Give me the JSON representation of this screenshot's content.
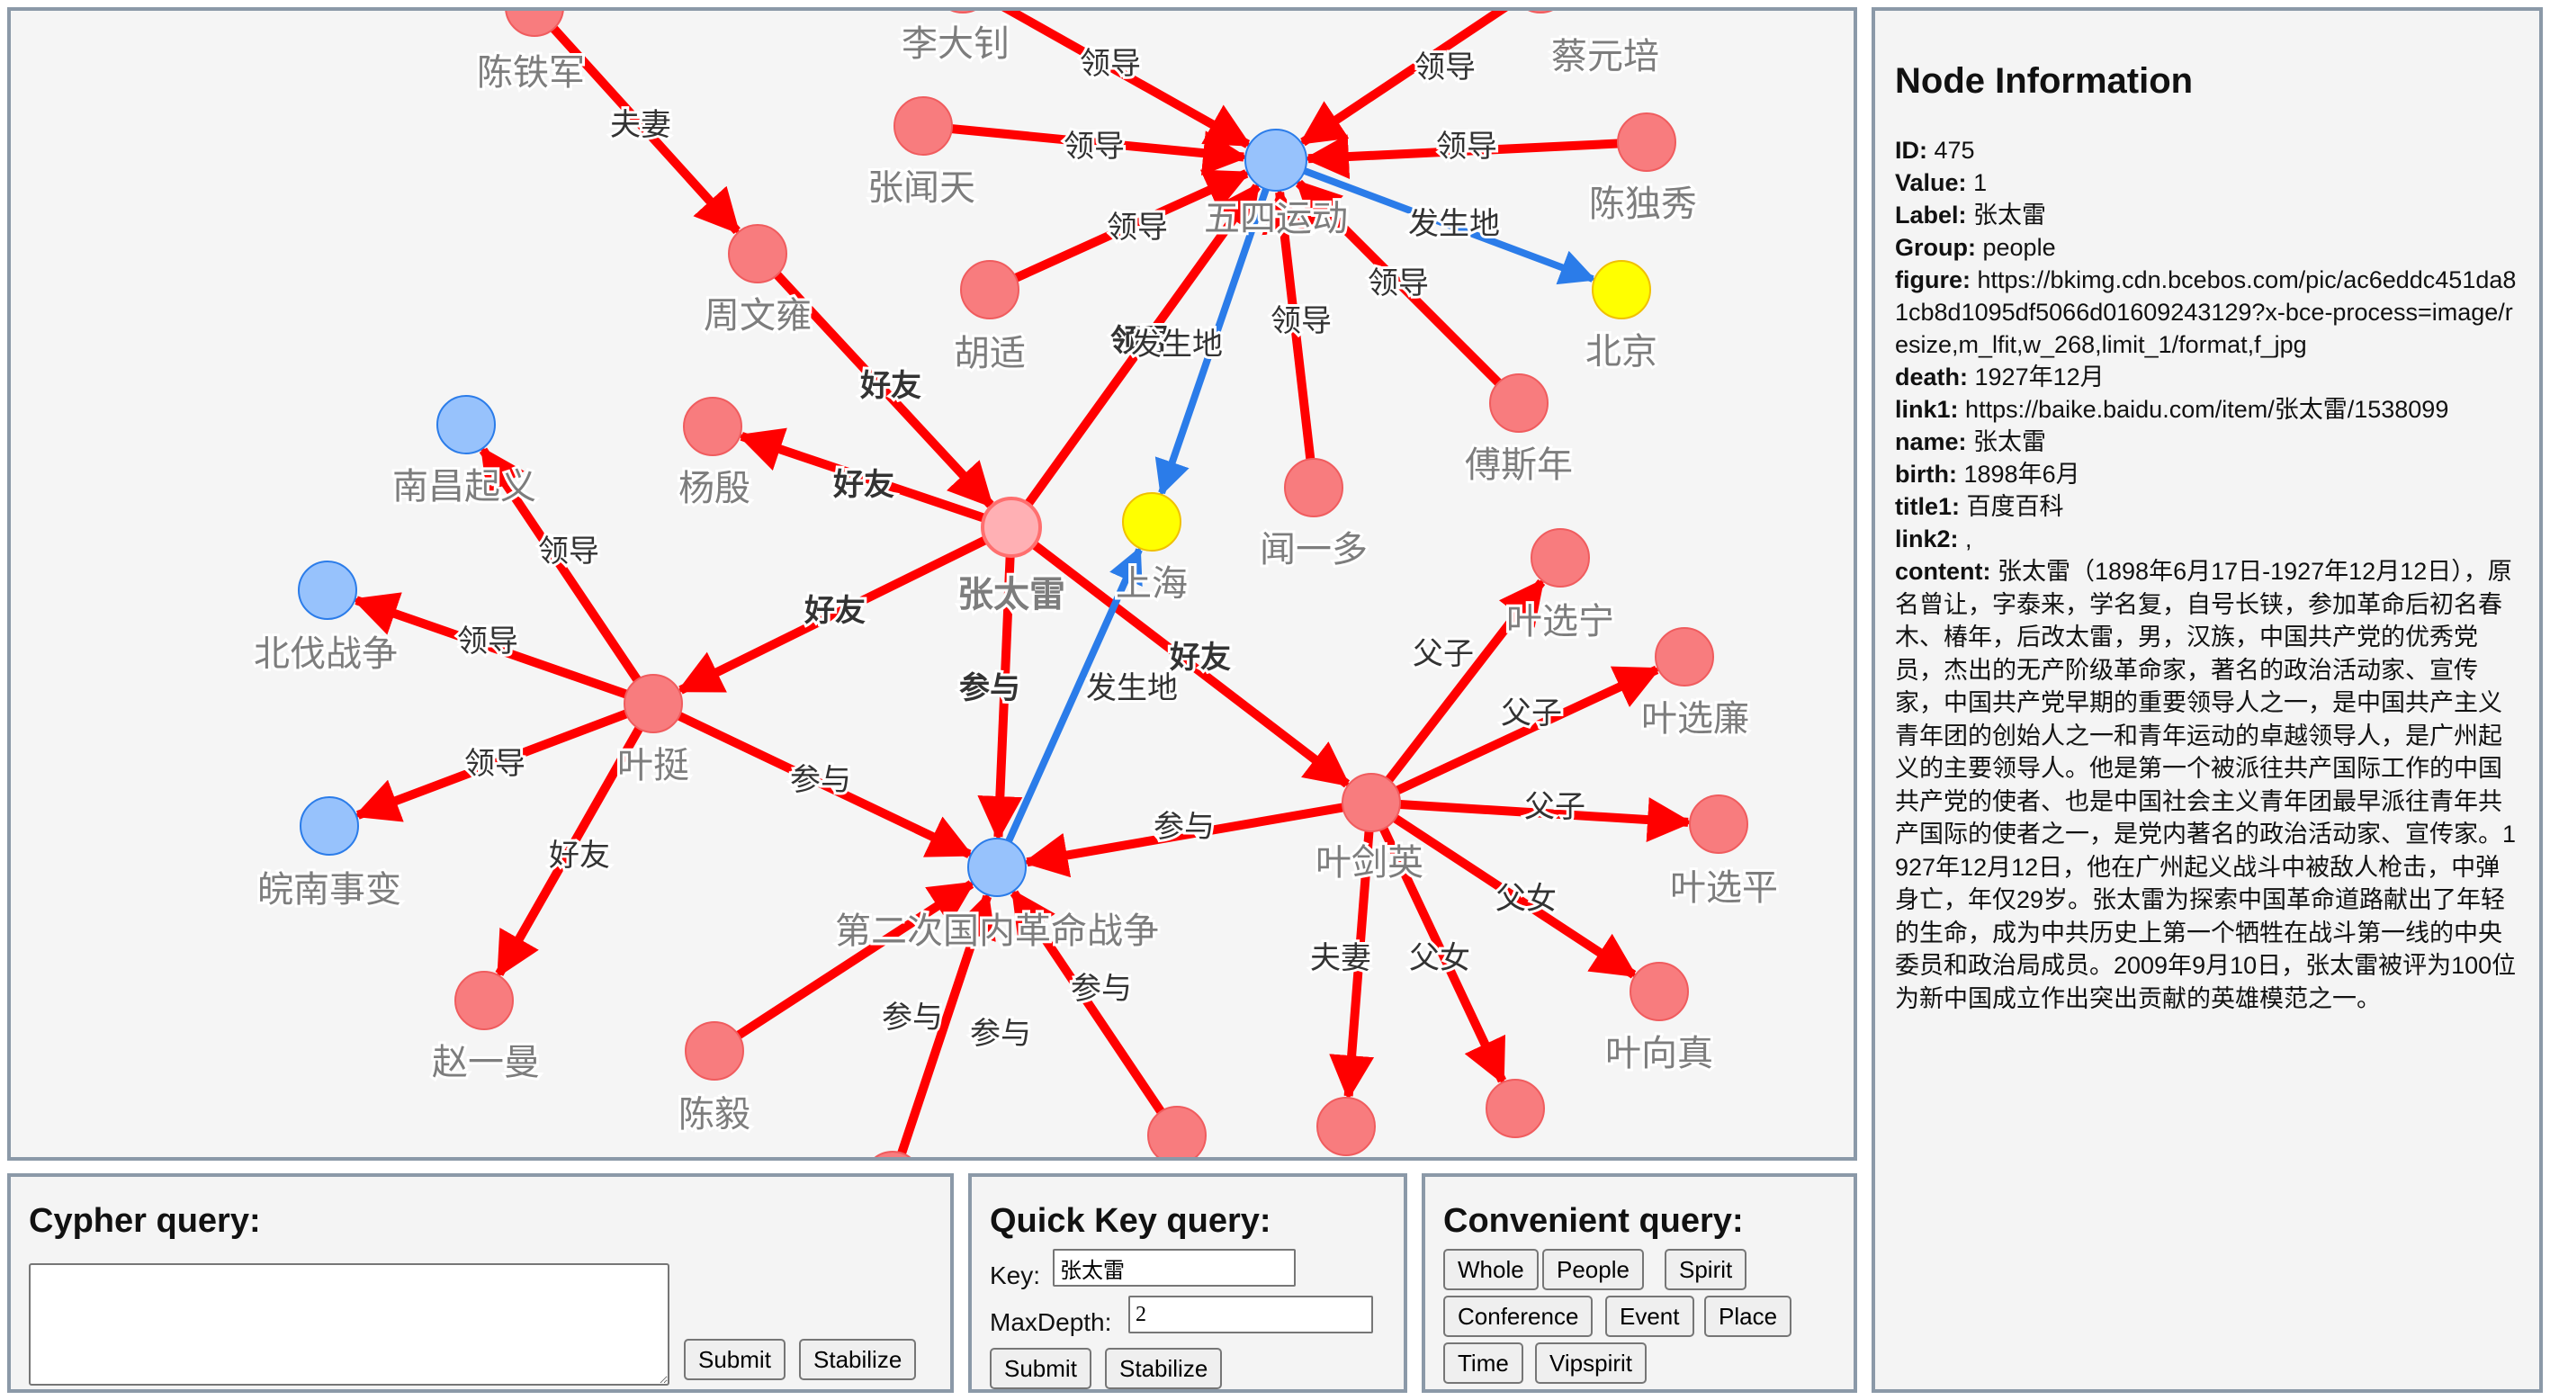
{
  "graph": {
    "nodes": [
      {
        "id": "n_wusi",
        "label": "五四运动",
        "color": "#97c2fc",
        "stroke": "#2b7ce9"
      },
      {
        "id": "n_ztl",
        "label": "张太雷",
        "color": "#ffb0b4",
        "stroke": "#ff6f6f",
        "bold": true
      },
      {
        "id": "n_yeting",
        "label": "叶挺",
        "color": "#f87c7e",
        "stroke": "#f05c5e"
      },
      {
        "id": "n_yjy",
        "label": "叶剑英",
        "color": "#f87c7e",
        "stroke": "#f05c5e"
      },
      {
        "id": "n_dec",
        "label": "第二次国内革命战争",
        "color": "#97c2fc",
        "stroke": "#2b7ce9"
      },
      {
        "id": "n_sh",
        "label": "上海",
        "color": "#ffff00",
        "stroke": "#f0c000"
      },
      {
        "id": "n_bj",
        "label": "北京",
        "color": "#ffff00",
        "stroke": "#f0c000"
      },
      {
        "id": "n_ldz",
        "label": "李大钊",
        "color": "#f87c7e",
        "stroke": "#f05c5e"
      },
      {
        "id": "n_cyp",
        "label": "蔡元培",
        "color": "#f87c7e",
        "stroke": "#f05c5e"
      },
      {
        "id": "n_zwt",
        "label": "张闻天",
        "color": "#f87c7e",
        "stroke": "#f05c5e"
      },
      {
        "id": "n_cdx",
        "label": "陈独秀",
        "color": "#f87c7e",
        "stroke": "#f05c5e"
      },
      {
        "id": "n_hs",
        "label": "胡适",
        "color": "#f87c7e",
        "stroke": "#f05c5e"
      },
      {
        "id": "n_fsn",
        "label": "傅斯年",
        "color": "#f87c7e",
        "stroke": "#f05c5e"
      },
      {
        "id": "n_wyd",
        "label": "闻一多",
        "color": "#f87c7e",
        "stroke": "#f05c5e"
      },
      {
        "id": "n_ctj",
        "label": "陈铁军",
        "color": "#f87c7e",
        "stroke": "#f05c5e"
      },
      {
        "id": "n_zwy",
        "label": "周文雍",
        "color": "#f87c7e",
        "stroke": "#f05c5e"
      },
      {
        "id": "n_yy",
        "label": "杨殷",
        "color": "#f87c7e",
        "stroke": "#f05c5e"
      },
      {
        "id": "n_ncqy",
        "label": "南昌起义",
        "color": "#97c2fc",
        "stroke": "#2b7ce9"
      },
      {
        "id": "n_bfzz",
        "label": "北伐战争",
        "color": "#97c2fc",
        "stroke": "#2b7ce9"
      },
      {
        "id": "n_wnsb",
        "label": "皖南事变",
        "color": "#97c2fc",
        "stroke": "#2b7ce9"
      },
      {
        "id": "n_zym",
        "label": "赵一曼",
        "color": "#f87c7e",
        "stroke": "#f05c5e"
      },
      {
        "id": "n_cy",
        "label": "陈毅",
        "color": "#f87c7e",
        "stroke": "#f05c5e"
      },
      {
        "id": "n_yxn",
        "label": "叶选宁",
        "color": "#f87c7e",
        "stroke": "#f05c5e"
      },
      {
        "id": "n_yxl",
        "label": "叶选廉",
        "color": "#f87c7e",
        "stroke": "#f05c5e"
      },
      {
        "id": "n_yxp",
        "label": "叶选平",
        "color": "#f87c7e",
        "stroke": "#f05c5e"
      },
      {
        "id": "n_yxz",
        "label": "叶向真",
        "color": "#f87c7e",
        "stroke": "#f05c5e"
      },
      {
        "id": "n_b1",
        "label": "",
        "color": "#f87c7e",
        "stroke": "#f05c5e"
      },
      {
        "id": "n_b2",
        "label": "",
        "color": "#f87c7e",
        "stroke": "#f05c5e"
      },
      {
        "id": "n_b3",
        "label": "",
        "color": "#f87c7e",
        "stroke": "#f05c5e"
      },
      {
        "id": "n_off1",
        "label": "",
        "color": "#f87c7e",
        "stroke": "#f05c5e"
      }
    ],
    "edges": [
      {
        "from": "n_ldz",
        "to": "n_wusi",
        "label": "领导",
        "color": "#ff0000"
      },
      {
        "from": "n_cyp",
        "to": "n_wusi",
        "label": "领导",
        "color": "#ff0000"
      },
      {
        "from": "n_zwt",
        "to": "n_wusi",
        "label": "领导",
        "color": "#ff0000"
      },
      {
        "from": "n_cdx",
        "to": "n_wusi",
        "label": "领导",
        "color": "#ff0000"
      },
      {
        "from": "n_hs",
        "to": "n_wusi",
        "label": "领导",
        "color": "#ff0000"
      },
      {
        "from": "n_fsn",
        "to": "n_wusi",
        "label": "领导",
        "color": "#ff0000"
      },
      {
        "from": "n_wyd",
        "to": "n_wusi",
        "label": "领导",
        "color": "#ff0000"
      },
      {
        "from": "n_ztl",
        "to": "n_wusi",
        "label": "领导",
        "color": "#ff0000",
        "boldLabel": true
      },
      {
        "from": "n_wusi",
        "to": "n_bj",
        "label": "发生地",
        "color": "#2b7ce9"
      },
      {
        "from": "n_wusi",
        "to": "n_sh",
        "label": "发生地",
        "color": "#2b7ce9"
      },
      {
        "from": "n_ctj",
        "to": "n_zwy",
        "label": "夫妻",
        "color": "#ff0000"
      },
      {
        "from": "n_zwy",
        "to": "n_ztl",
        "label": "好友",
        "color": "#ff0000",
        "boldLabel": true
      },
      {
        "from": "n_ztl",
        "to": "n_yy",
        "label": "好友",
        "color": "#ff0000",
        "boldLabel": true
      },
      {
        "from": "n_ztl",
        "to": "n_yeting",
        "label": "好友",
        "color": "#ff0000",
        "boldLabel": true
      },
      {
        "from": "n_ztl",
        "to": "n_yjy",
        "label": "好友",
        "color": "#ff0000",
        "boldLabel": true
      },
      {
        "from": "n_ztl",
        "to": "n_dec",
        "label": "参与",
        "color": "#ff0000",
        "boldLabel": true
      },
      {
        "from": "n_dec",
        "to": "n_sh",
        "label": "发生地",
        "color": "#2b7ce9"
      },
      {
        "from": "n_yeting",
        "to": "n_ncqy",
        "label": "领导",
        "color": "#ff0000"
      },
      {
        "from": "n_yeting",
        "to": "n_bfzz",
        "label": "领导",
        "color": "#ff0000"
      },
      {
        "from": "n_yeting",
        "to": "n_wnsb",
        "label": "领导",
        "color": "#ff0000"
      },
      {
        "from": "n_yeting",
        "to": "n_zym",
        "label": "好友",
        "color": "#ff0000"
      },
      {
        "from": "n_yeting",
        "to": "n_dec",
        "label": "参与",
        "color": "#ff0000"
      },
      {
        "from": "n_yjy",
        "to": "n_dec",
        "label": "参与",
        "color": "#ff0000"
      },
      {
        "from": "n_yjy",
        "to": "n_yxn",
        "label": "父子",
        "color": "#ff0000"
      },
      {
        "from": "n_yjy",
        "to": "n_yxl",
        "label": "父子",
        "color": "#ff0000"
      },
      {
        "from": "n_yjy",
        "to": "n_yxp",
        "label": "父子",
        "color": "#ff0000"
      },
      {
        "from": "n_yjy",
        "to": "n_yxz",
        "label": "父女",
        "color": "#ff0000"
      },
      {
        "from": "n_yjy",
        "to": "n_b3",
        "label": "父女",
        "color": "#ff0000"
      },
      {
        "from": "n_yjy",
        "to": "n_b2",
        "label": "夫妻",
        "color": "#ff0000"
      },
      {
        "from": "n_cy",
        "to": "n_dec",
        "label": "参与",
        "color": "#ff0000"
      },
      {
        "from": "n_b1",
        "to": "n_dec",
        "label": "参与",
        "color": "#ff0000"
      },
      {
        "from": "n_off1",
        "to": "n_dec",
        "label": "参与",
        "color": "#ff0000"
      }
    ]
  },
  "cypher": {
    "title": "Cypher query:",
    "textarea_value": "",
    "submit": "Submit",
    "stabilize": "Stabilize"
  },
  "quick": {
    "title": "Quick Key query:",
    "key_label": "Key:",
    "key_value": "张太雷",
    "depth_label": "MaxDepth:",
    "depth_value": "2",
    "submit": "Submit",
    "stabilize": "Stabilize"
  },
  "convenient": {
    "title": "Convenient query:",
    "buttons": [
      "Whole",
      "People",
      "Spirit",
      "Conference",
      "Event",
      "Place",
      "Time",
      "Vipspirit"
    ]
  },
  "info": {
    "title": "Node Information",
    "fields": [
      {
        "key": "ID:",
        "value": "475"
      },
      {
        "key": "Value:",
        "value": "1"
      },
      {
        "key": "Label:",
        "value": "张太雷"
      },
      {
        "key": "Group:",
        "value": "people"
      },
      {
        "key": "figure:",
        "value": "https://bkimg.cdn.bcebos.com/pic/ac6eddc451da81cb8d1095df5066d01609243129?x-bce-process=image/resize,m_lfit,w_268,limit_1/format,f_jpg"
      },
      {
        "key": "death:",
        "value": "1927年12月"
      },
      {
        "key": "link1:",
        "value": "https://baike.baidu.com/item/张太雷/1538099"
      },
      {
        "key": "name:",
        "value": "张太雷"
      },
      {
        "key": "birth:",
        "value": "1898年6月"
      },
      {
        "key": "title1:",
        "value": "百度百科"
      },
      {
        "key": "link2:",
        "value": ","
      }
    ],
    "content_key": "content:",
    "content_value": "张太雷（1898年6月17日-1927年12月12日），原名曾让，字泰来，学名复，自号长铗，参加革命后初名春木、椿年，后改太雷，男，汉族，中国共产党的优秀党员，杰出的无产阶级革命家，著名的政治活动家、宣传家，中国共产党早期的重要领导人之一，是中国共产主义青年团的创始人之一和青年运动的卓越领导人，是广州起义的主要领导人。他是第一个被派往共产国际工作的中国共产党的使者、也是中国社会主义青年团最早派往青年共产国际的使者之一，是党内著名的政治活动家、宣传家。1927年12月12日，他在广州起义战斗中被敌人枪击，中弹身亡，年仅29岁。张太雷为探索中国革命道路献出了年轻的生命，成为中共历史上第一个牺牲在战斗第一线的中央委员和政治局成员。2009年9月10日，张太雷被评为100位为新中国成立作出突出贡献的英雄模范之一。"
  }
}
